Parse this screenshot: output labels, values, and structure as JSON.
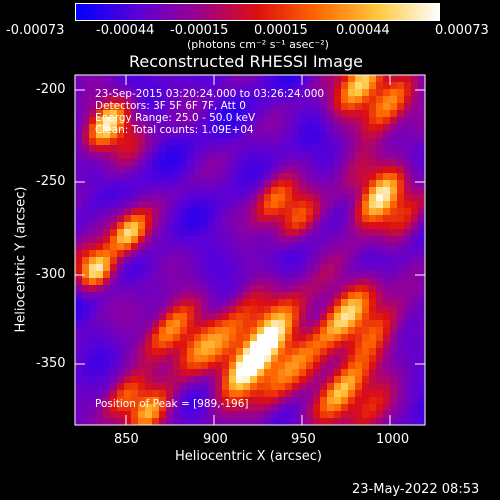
{
  "colorbar": {
    "tick_labels": [
      "-0.00073",
      "-0.00044",
      "-0.00015",
      "0.00015",
      "0.00044",
      "0.00073"
    ],
    "units": "(photons cm⁻² s⁻¹ asec⁻²)",
    "colors": [
      "#0000ff",
      "#5a00d8",
      "#9a0090",
      "#dd1010",
      "#ff6a00",
      "#ffc840",
      "#ffffff"
    ]
  },
  "image": {
    "title": "Reconstructed RHESSI Image",
    "x_label": "Heliocentric X (arcsec)",
    "y_label": "Heliocentric Y (arcsec)",
    "x_ticks": [
      "850",
      "900",
      "950",
      "1000"
    ],
    "y_ticks": [
      "-200",
      "-250",
      "-300",
      "-350"
    ],
    "info_lines": [
      "23-Sep-2015 03:20:24.000 to 03:26:24.000",
      "Detectors: 3F 5F 6F 7F, Att 0",
      "Energy Range: 25.0 - 50.0 keV",
      "Clean:      Total counts: 1.09E+04"
    ],
    "peak_label": "Position of Peak = [989,-196]"
  },
  "footer": {
    "timestamp": "23-May-2022 08:53"
  }
}
